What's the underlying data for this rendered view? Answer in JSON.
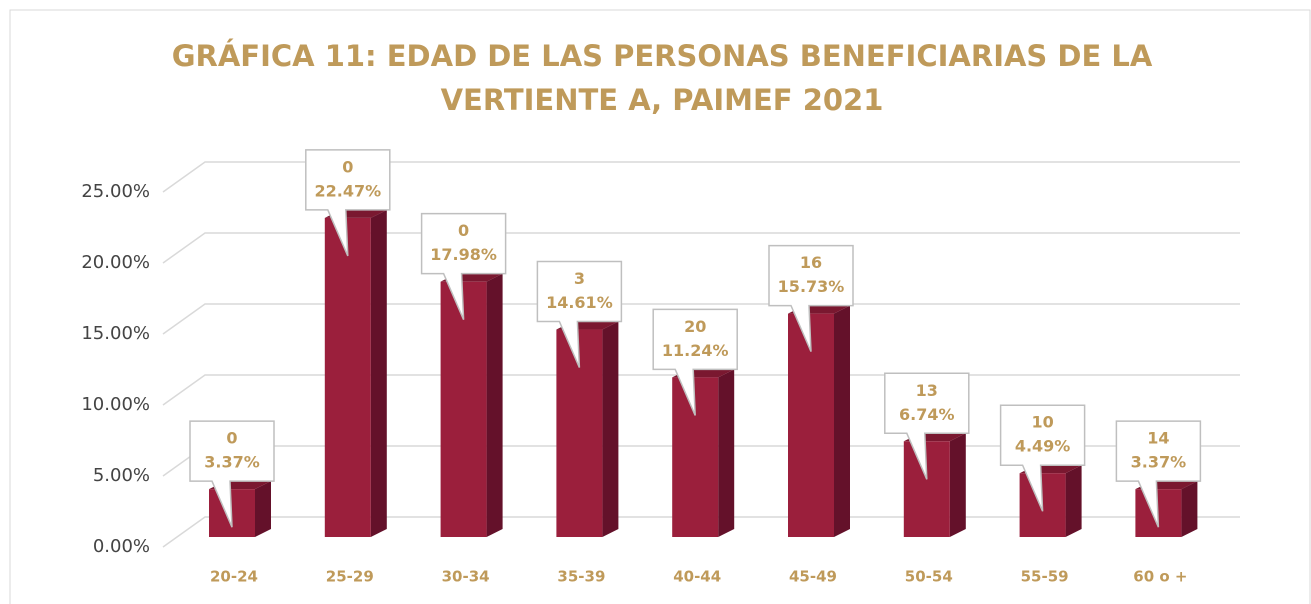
{
  "chart_data": {
    "type": "bar3d",
    "title": [
      "GRÁFICA 11: EDAD DE LAS PERSONAS BENEFICIARIAS DE LA",
      "VERTIENTE A, PAIMEF 2021"
    ],
    "categories": [
      "20-24",
      "25-29",
      "30-34",
      "35-39",
      "40-44",
      "45-49",
      "50-54",
      "55-59",
      "60 o +"
    ],
    "values": [
      3.37,
      22.47,
      17.98,
      14.61,
      11.24,
      15.73,
      6.74,
      4.49,
      3.37
    ],
    "value_labels": [
      "3.37%",
      "22.47%",
      "17.98%",
      "14.61%",
      "11.24%",
      "15.73%",
      "6.74%",
      "4.49%",
      "3.37%"
    ],
    "counts": [
      0,
      0,
      0,
      3,
      20,
      16,
      13,
      10,
      14
    ],
    "color": "#9b1f3c",
    "ylim": [
      0,
      25
    ],
    "yticks": [
      {
        "value": 0,
        "label": "0.00%"
      },
      {
        "value": 5,
        "label": "5.00%"
      },
      {
        "value": 10,
        "label": "10.00%"
      },
      {
        "value": 15,
        "label": "15.00%"
      },
      {
        "value": 20,
        "label": "20.00%"
      },
      {
        "value": 25,
        "label": "25.00%"
      }
    ],
    "grid": true
  }
}
